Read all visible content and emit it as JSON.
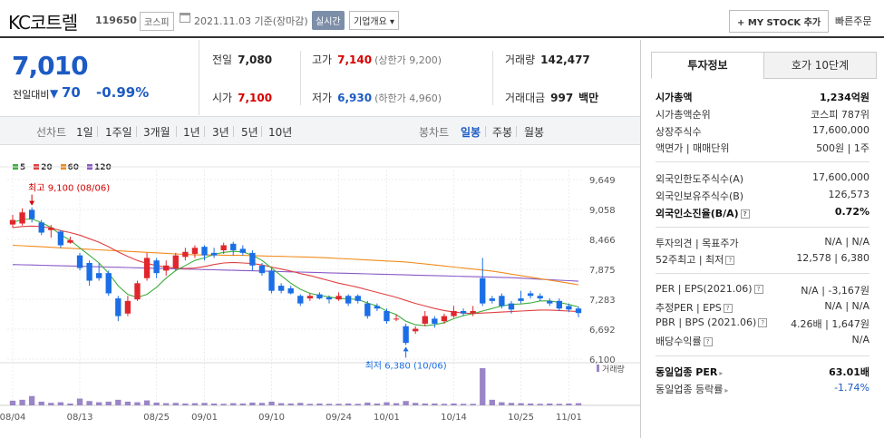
{
  "header": {
    "title": "KC코트렐",
    "code": "119650",
    "market": "코스피",
    "date": "2021.11.03 기준(장마감)",
    "live_label": "실시간",
    "info_label": "기업개요",
    "mystock_label": "MY STOCK 추가",
    "quick_order": "빠른주문"
  },
  "price": {
    "current": "7,010",
    "change_label": "전일대비",
    "change_arrow": "▼",
    "change": "70",
    "change_pct": "-0.99%"
  },
  "stats": {
    "prev_close": {
      "label": "전일",
      "value": "7,080"
    },
    "high": {
      "label": "고가",
      "value": "7,140",
      "sub": "(상한가 9,200)"
    },
    "volume": {
      "label": "거래량",
      "value": "142,477"
    },
    "open": {
      "label": "시가",
      "value": "7,100"
    },
    "low": {
      "label": "저가",
      "value": "6,930",
      "sub": "(하한가 4,960)"
    },
    "amount": {
      "label": "거래대금",
      "value": "997",
      "unit": "백만"
    }
  },
  "toolbar": {
    "chart_label": "선차트",
    "periods": [
      "1일",
      "1주일",
      "3개월",
      "1년",
      "3년",
      "5년",
      "10년"
    ],
    "candle_label": "봉차트",
    "candle_types": [
      "일봉",
      "주봉",
      "월봉"
    ],
    "active_candle": "일봉"
  },
  "right_panel": {
    "tab_active": "투자정보",
    "tab_inactive": "호가 10단계",
    "market_cap": {
      "label": "시가총액",
      "value": "1,234억원"
    },
    "cap_rank": {
      "label": "시가총액순위",
      "value": "코스피 787위"
    },
    "shares": {
      "label": "상장주식수",
      "value": "17,600,000"
    },
    "par": {
      "label": "액면가 | 매매단위",
      "value": "500원 | 1주"
    },
    "foreign_limit": {
      "label": "외국인한도주식수(A)",
      "value": "17,600,000"
    },
    "foreign_hold": {
      "label": "외국인보유주식수(B)",
      "value": "126,573"
    },
    "foreign_ratio": {
      "label": "외국인소진율(B/A)",
      "value": "0.72%"
    },
    "opinion": {
      "label": "투자의견 | 목표주가",
      "value": "N/A | N/A"
    },
    "week52": {
      "label": "52주최고 | 최저",
      "value": "12,578 | 6,380"
    },
    "per": {
      "label": "PER | EPS(2021.06)",
      "value": "N/A | -3,167원"
    },
    "est_per": {
      "label": "추정PER | EPS",
      "value": "N/A | N/A"
    },
    "pbr": {
      "label": "PBR | BPS (2021.06)",
      "value": "4.26배 | 1,647원"
    },
    "dividend": {
      "label": "배당수익률",
      "value": "N/A"
    },
    "sector_per": {
      "label": "동일업종 PER",
      "value": "63.01배"
    },
    "sector_rate": {
      "label": "동일업종 등락률",
      "value": "-1.74%"
    }
  },
  "chart_data": {
    "type": "candlestick",
    "legend": [
      {
        "label": "5",
        "color": "#3fae3f"
      },
      {
        "label": "20",
        "color": "#e04040"
      },
      {
        "label": "60",
        "color": "#f08c1e"
      },
      {
        "label": "120",
        "color": "#8a5ac8"
      }
    ],
    "y_ticks": [
      "9,649",
      "9,058",
      "8,466",
      "7,875",
      "7,283",
      "6,692",
      "6,100"
    ],
    "y_range": [
      6100,
      9649
    ],
    "x_ticks": [
      {
        "label": "08/04",
        "index": 0
      },
      {
        "label": "08/13",
        "index": 7
      },
      {
        "label": "08/25",
        "index": 15
      },
      {
        "label": "09/01",
        "index": 20
      },
      {
        "label": "09/10",
        "index": 27
      },
      {
        "label": "09/24",
        "index": 34
      },
      {
        "label": "10/01",
        "index": 39
      },
      {
        "label": "10/14",
        "index": 46
      },
      {
        "label": "10/25",
        "index": 53
      },
      {
        "label": "11/01",
        "index": 58
      }
    ],
    "high_annotation": {
      "text": "최고 9,100 (08/06)",
      "index": 2,
      "value": 9100
    },
    "low_annotation": {
      "text": "최저 6,380 (10/06)",
      "index": 41,
      "value": 6380
    },
    "volume_label": "거래량",
    "candles": [
      {
        "o": 8760,
        "c": 8850,
        "h": 8950,
        "l": 8700
      },
      {
        "o": 8780,
        "c": 9000,
        "h": 9080,
        "l": 8740
      },
      {
        "o": 9050,
        "c": 8870,
        "h": 9100,
        "l": 8800
      },
      {
        "o": 8800,
        "c": 8600,
        "h": 8850,
        "l": 8550
      },
      {
        "o": 8650,
        "c": 8700,
        "h": 8750,
        "l": 8500
      },
      {
        "o": 8620,
        "c": 8350,
        "h": 8650,
        "l": 8300
      },
      {
        "o": 8400,
        "c": 8450,
        "h": 8520,
        "l": 8380
      },
      {
        "o": 8150,
        "c": 7900,
        "h": 8200,
        "l": 7850
      },
      {
        "o": 8000,
        "c": 7650,
        "h": 8050,
        "l": 7550
      },
      {
        "o": 7800,
        "c": 7700,
        "h": 8000,
        "l": 7650
      },
      {
        "o": 7800,
        "c": 7400,
        "h": 7850,
        "l": 7350
      },
      {
        "o": 7300,
        "c": 6950,
        "h": 7350,
        "l": 6850
      },
      {
        "o": 7000,
        "c": 7250,
        "h": 7350,
        "l": 6950
      },
      {
        "o": 7280,
        "c": 7600,
        "h": 7650,
        "l": 7250
      },
      {
        "o": 7700,
        "c": 8100,
        "h": 8200,
        "l": 7650
      },
      {
        "o": 8050,
        "c": 7800,
        "h": 8100,
        "l": 7700
      },
      {
        "o": 7850,
        "c": 7950,
        "h": 8050,
        "l": 7750
      },
      {
        "o": 7900,
        "c": 8150,
        "h": 8200,
        "l": 7850
      },
      {
        "o": 8120,
        "c": 8220,
        "h": 8300,
        "l": 8050
      },
      {
        "o": 8180,
        "c": 8300,
        "h": 8350,
        "l": 8100
      },
      {
        "o": 8320,
        "c": 8150,
        "h": 8350,
        "l": 8050
      },
      {
        "o": 8200,
        "c": 8150,
        "h": 8300,
        "l": 8100
      },
      {
        "o": 8250,
        "c": 8350,
        "h": 8400,
        "l": 8180
      },
      {
        "o": 8380,
        "c": 8250,
        "h": 8420,
        "l": 8150
      },
      {
        "o": 8280,
        "c": 8200,
        "h": 8350,
        "l": 8150
      },
      {
        "o": 8200,
        "c": 7950,
        "h": 8250,
        "l": 7850
      },
      {
        "o": 7950,
        "c": 7800,
        "h": 8000,
        "l": 7750
      },
      {
        "o": 7850,
        "c": 7450,
        "h": 7900,
        "l": 7400
      },
      {
        "o": 7550,
        "c": 7450,
        "h": 7600,
        "l": 7400
      },
      {
        "o": 7500,
        "c": 7400,
        "h": 7550,
        "l": 7380
      },
      {
        "o": 7350,
        "c": 7200,
        "h": 7380,
        "l": 7150
      },
      {
        "o": 7300,
        "c": 7350,
        "h": 7400,
        "l": 7250
      },
      {
        "o": 7380,
        "c": 7300,
        "h": 7420,
        "l": 7280
      },
      {
        "o": 7320,
        "c": 7280,
        "h": 7360,
        "l": 7200
      },
      {
        "o": 7280,
        "c": 7350,
        "h": 7420,
        "l": 7250
      },
      {
        "o": 7350,
        "c": 7200,
        "h": 7380,
        "l": 7150
      },
      {
        "o": 7350,
        "c": 7250,
        "h": 7380,
        "l": 7200
      },
      {
        "o": 7200,
        "c": 6950,
        "h": 7250,
        "l": 6900
      },
      {
        "o": 7150,
        "c": 7100,
        "h": 7200,
        "l": 7050
      },
      {
        "o": 7050,
        "c": 6850,
        "h": 7100,
        "l": 6800
      },
      {
        "o": 6900,
        "c": 6900,
        "h": 6980,
        "l": 6850
      },
      {
        "o": 6750,
        "c": 6420,
        "h": 6800,
        "l": 6380
      },
      {
        "o": 6650,
        "c": 6700,
        "h": 6750,
        "l": 6600
      },
      {
        "o": 6800,
        "c": 6950,
        "h": 7050,
        "l": 6750
      },
      {
        "o": 6900,
        "c": 6800,
        "h": 6950,
        "l": 6720
      },
      {
        "o": 6850,
        "c": 6950,
        "h": 7000,
        "l": 6800
      },
      {
        "o": 6950,
        "c": 7050,
        "h": 7150,
        "l": 6920
      },
      {
        "o": 7050,
        "c": 7000,
        "h": 7100,
        "l": 6950
      },
      {
        "o": 7000,
        "c": 7050,
        "h": 7150,
        "l": 6950
      },
      {
        "o": 7700,
        "c": 7200,
        "h": 8100,
        "l": 7150
      },
      {
        "o": 7300,
        "c": 7250,
        "h": 7350,
        "l": 7200
      },
      {
        "o": 7350,
        "c": 7150,
        "h": 7400,
        "l": 7100
      },
      {
        "o": 7200,
        "c": 7080,
        "h": 7250,
        "l": 7000
      },
      {
        "o": 7300,
        "c": 7250,
        "h": 7450,
        "l": 7200
      },
      {
        "o": 7400,
        "c": 7350,
        "h": 7450,
        "l": 7300
      },
      {
        "o": 7350,
        "c": 7300,
        "h": 7400,
        "l": 7250
      },
      {
        "o": 7250,
        "c": 7200,
        "h": 7300,
        "l": 7150
      },
      {
        "o": 7250,
        "c": 7100,
        "h": 7300,
        "l": 7050
      },
      {
        "o": 7150,
        "c": 7080,
        "h": 7200,
        "l": 7030
      },
      {
        "o": 7100,
        "c": 7010,
        "h": 7140,
        "l": 6930
      }
    ],
    "volumes": [
      15,
      18,
      30,
      12,
      8,
      10,
      6,
      22,
      14,
      10,
      12,
      18,
      12,
      10,
      16,
      9,
      7,
      8,
      6,
      7,
      8,
      6,
      5,
      7,
      6,
      9,
      8,
      12,
      7,
      6,
      8,
      5,
      6,
      5,
      5,
      6,
      5,
      9,
      6,
      10,
      7,
      14,
      8,
      6,
      6,
      5,
      6,
      5,
      5,
      120,
      18,
      10,
      8,
      7,
      6,
      5,
      6,
      5,
      6,
      7
    ],
    "ma5": [
      8800,
      8860,
      8870,
      8800,
      8700,
      8560,
      8450,
      8300,
      8150,
      8000,
      7800,
      7550,
      7380,
      7320,
      7380,
      7520,
      7700,
      7850,
      7950,
      8050,
      8100,
      8170,
      8210,
      8230,
      8220,
      8150,
      8050,
      7900,
      7750,
      7600,
      7480,
      7400,
      7360,
      7330,
      7300,
      7290,
      7280,
      7210,
      7150,
      7050,
      6980,
      6850,
      6780,
      6760,
      6780,
      6820,
      6900,
      6960,
      7000,
      7050,
      7100,
      7150,
      7180,
      7190,
      7210,
      7250,
      7250,
      7220,
      7180,
      7130
    ],
    "ma20": [
      8700,
      8720,
      8730,
      8720,
      8690,
      8640,
      8600,
      8550,
      8480,
      8410,
      8320,
      8220,
      8130,
      8050,
      7990,
      7950,
      7920,
      7900,
      7890,
      7900,
      7930,
      7970,
      8000,
      8010,
      8000,
      7990,
      7960,
      7920,
      7880,
      7840,
      7790,
      7750,
      7700,
      7650,
      7600,
      7560,
      7520,
      7470,
      7420,
      7370,
      7320,
      7260,
      7200,
      7150,
      7100,
      7060,
      7030,
      7010,
      7000,
      7010,
      7020,
      7030,
      7040,
      7050,
      7060,
      7070,
      7070,
      7060,
      7050,
      7040
    ],
    "ma60": [
      8350,
      8340,
      8330,
      8320,
      8310,
      8300,
      8290,
      8280,
      8270,
      8260,
      8250,
      8240,
      8230,
      8220,
      8210,
      8200,
      8190,
      8180,
      8170,
      8160,
      8160,
      8160,
      8155,
      8150,
      8150,
      8145,
      8140,
      8135,
      8130,
      8125,
      8120,
      8115,
      8110,
      8100,
      8090,
      8080,
      8070,
      8060,
      8050,
      8040,
      8030,
      8020,
      8000,
      7980,
      7960,
      7940,
      7920,
      7900,
      7880,
      7860,
      7840,
      7810,
      7780,
      7750,
      7720,
      7690,
      7660,
      7630,
      7600,
      7570
    ],
    "ma120": [
      7970,
      7965,
      7960,
      7955,
      7950,
      7945,
      7940,
      7935,
      7930,
      7925,
      7920,
      7915,
      7910,
      7905,
      7900,
      7895,
      7890,
      7885,
      7880,
      7875,
      7870,
      7865,
      7860,
      7855,
      7850,
      7845,
      7840,
      7835,
      7830,
      7825,
      7820,
      7815,
      7810,
      7805,
      7800,
      7795,
      7790,
      7785,
      7780,
      7775,
      7770,
      7765,
      7760,
      7755,
      7750,
      7745,
      7740,
      7735,
      7730,
      7725,
      7720,
      7715,
      7710,
      7700,
      7690,
      7680,
      7670,
      7660,
      7650,
      7640
    ]
  }
}
